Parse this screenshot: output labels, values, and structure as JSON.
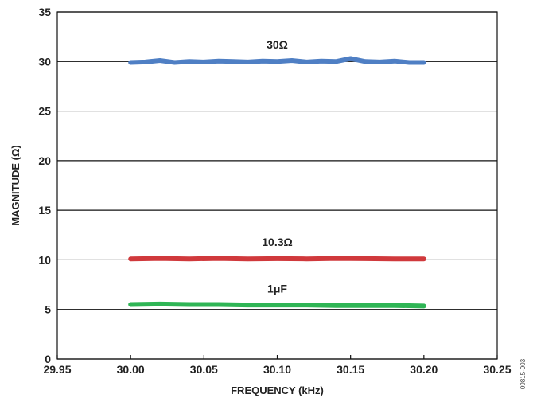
{
  "chart_data": {
    "type": "line",
    "xlabel": "FREQUENCY (kHz)",
    "ylabel": "MAGNITUDE (Ω)",
    "xlim": [
      29.95,
      30.25
    ],
    "ylim": [
      0,
      35
    ],
    "x_ticks": [
      "29.95",
      "30.00",
      "30.05",
      "30.10",
      "30.15",
      "30.20",
      "30.25"
    ],
    "y_ticks": [
      "0",
      "5",
      "10",
      "15",
      "20",
      "25",
      "30",
      "35"
    ],
    "grid": "horizontal",
    "figure_code": "09815-003",
    "series": [
      {
        "name": "30Ω",
        "color": "#4f7fc4",
        "x": [
          30.0,
          30.01,
          30.02,
          30.03,
          30.04,
          30.05,
          30.06,
          30.07,
          30.08,
          30.09,
          30.1,
          30.11,
          30.12,
          30.13,
          30.14,
          30.15,
          30.16,
          30.17,
          30.18,
          30.19,
          30.2
        ],
        "y": [
          29.9,
          29.95,
          30.1,
          29.9,
          30.0,
          29.95,
          30.05,
          30.0,
          29.95,
          30.05,
          30.0,
          30.1,
          29.95,
          30.05,
          30.0,
          30.3,
          30.0,
          29.95,
          30.05,
          29.9,
          29.9
        ]
      },
      {
        "name": "10.3Ω",
        "color": "#d0393c",
        "x": [
          30.0,
          30.02,
          30.04,
          30.06,
          30.08,
          30.1,
          30.12,
          30.14,
          30.16,
          30.18,
          30.2
        ],
        "y": [
          10.1,
          10.15,
          10.1,
          10.15,
          10.1,
          10.12,
          10.1,
          10.15,
          10.12,
          10.1,
          10.1
        ]
      },
      {
        "name": "1μF",
        "color": "#2fb555",
        "x": [
          30.0,
          30.02,
          30.04,
          30.06,
          30.08,
          30.1,
          30.12,
          30.14,
          30.16,
          30.18,
          30.2
        ],
        "y": [
          5.5,
          5.55,
          5.5,
          5.5,
          5.45,
          5.45,
          5.45,
          5.4,
          5.4,
          5.4,
          5.35
        ]
      }
    ],
    "series_labels_at": [
      {
        "x": 30.1,
        "y": 31.3
      },
      {
        "x": 30.1,
        "y": 11.4
      },
      {
        "x": 30.1,
        "y": 6.7
      }
    ]
  }
}
